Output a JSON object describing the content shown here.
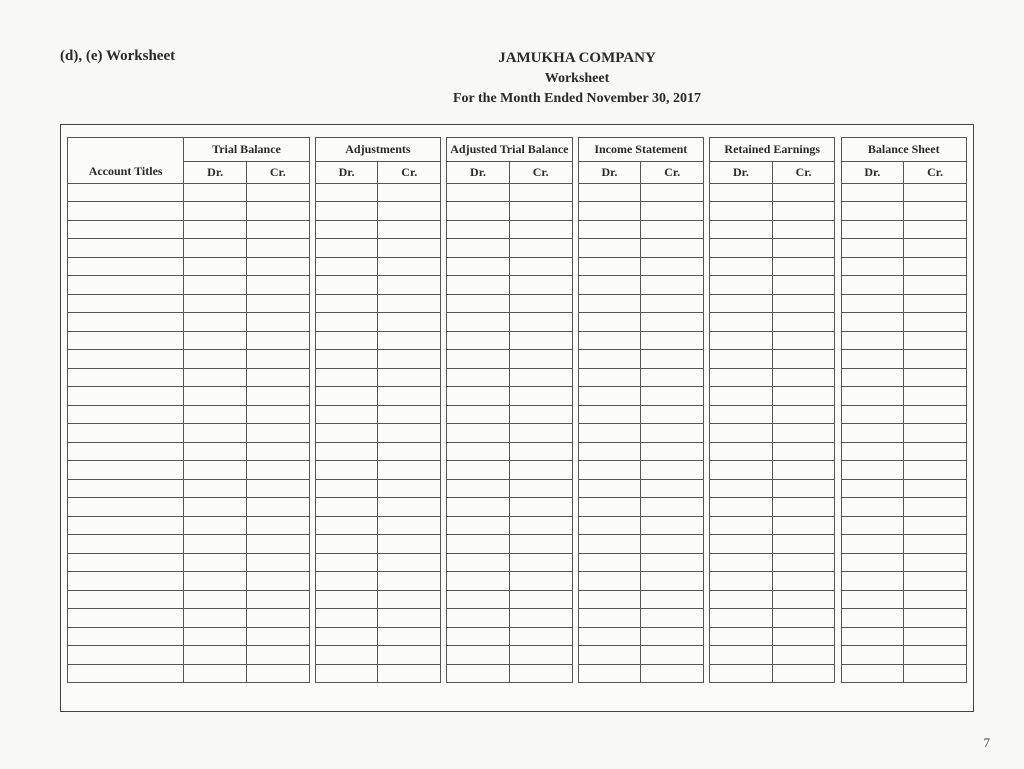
{
  "section_label": "(d), (e) Worksheet",
  "company": "JAMUKHA COMPANY",
  "doc_title": "Worksheet",
  "period": "For the Month Ended November 30, 2017",
  "columns": {
    "account_titles": "Account Titles",
    "groups": [
      "Trial Balance",
      "Adjustments",
      "Adjusted Trial Balance",
      "Income Statement",
      "Retained Earnings",
      "Balance   Sheet"
    ],
    "dr": "Dr.",
    "cr": "Cr."
  },
  "blank_rows": 27,
  "page_number": "7",
  "style": {
    "background_color": "#f8f8f5",
    "border_color": "#555555",
    "font_family": "Times New Roman",
    "header_fontsize_pt": 14,
    "cell_fontsize_pt": 12
  }
}
